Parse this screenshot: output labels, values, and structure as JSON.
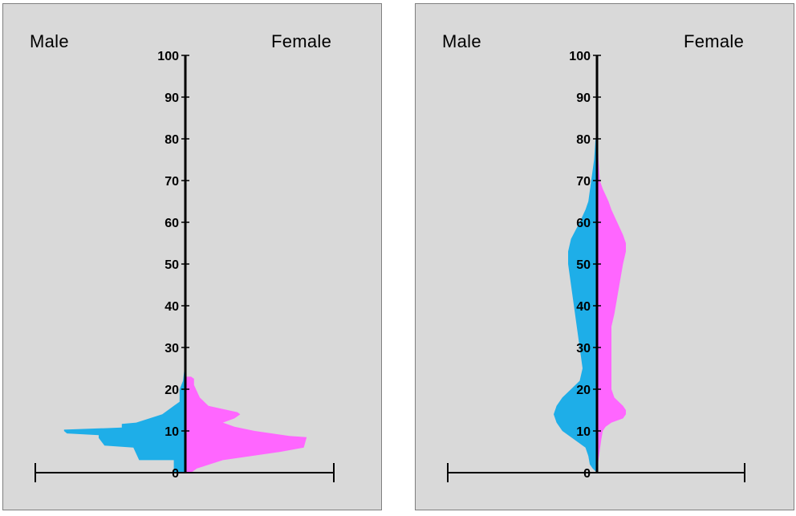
{
  "chart_data": [
    {
      "type": "area",
      "left_label": "Male",
      "right_label": "Female",
      "y_ticks": [
        "0",
        "10",
        "20",
        "30",
        "40",
        "50",
        "60",
        "70",
        "80",
        "90",
        "100"
      ],
      "ylim": [
        0,
        100
      ],
      "series": [
        {
          "name": "Male",
          "color": "#1eaee8",
          "points": [
            [
              0,
              4
            ],
            [
              3,
              4
            ],
            [
              3,
              16
            ],
            [
              6,
              18
            ],
            [
              6.5,
              28
            ],
            [
              8.3,
              30
            ],
            [
              9,
              30
            ],
            [
              9.4,
              41
            ],
            [
              10,
              42
            ],
            [
              10.3,
              42
            ],
            [
              10.8,
              22
            ],
            [
              11.7,
              22
            ],
            [
              12,
              17
            ],
            [
              14,
              8
            ],
            [
              16,
              4
            ],
            [
              17,
              2
            ],
            [
              20,
              2
            ],
            [
              22,
              0.8
            ],
            [
              25,
              0.3
            ],
            [
              27,
              0
            ]
          ]
        },
        {
          "name": "Female",
          "color": "#ff66ff",
          "points": [
            [
              0,
              2
            ],
            [
              1,
              4
            ],
            [
              3,
              13
            ],
            [
              5,
              33
            ],
            [
              6,
              41
            ],
            [
              8.5,
              42
            ],
            [
              8.8,
              36
            ],
            [
              10,
              24
            ],
            [
              11,
              17
            ],
            [
              12,
              13
            ],
            [
              13,
              17
            ],
            [
              14,
              19
            ],
            [
              14.5,
              18
            ],
            [
              16,
              8
            ],
            [
              18,
              5
            ],
            [
              21,
              3
            ],
            [
              22.5,
              3
            ],
            [
              23,
              2
            ]
          ]
        }
      ]
    },
    {
      "type": "area",
      "left_label": "Male",
      "right_label": "Female",
      "y_ticks": [
        "0",
        "10",
        "20",
        "30",
        "40",
        "50",
        "60",
        "70",
        "80",
        "90",
        "100"
      ],
      "ylim": [
        0,
        100
      ],
      "series": [
        {
          "name": "Male",
          "color": "#1eaee8",
          "points": [
            [
              0,
              0
            ],
            [
              1,
              1.5
            ],
            [
              2,
              2.5
            ],
            [
              4,
              3
            ],
            [
              6,
              4
            ],
            [
              8,
              8
            ],
            [
              10,
              12
            ],
            [
              12,
              14
            ],
            [
              14,
              15
            ],
            [
              16,
              14
            ],
            [
              18,
              12
            ],
            [
              20,
              9
            ],
            [
              22,
              6
            ],
            [
              25,
              5
            ],
            [
              30,
              6
            ],
            [
              35,
              7
            ],
            [
              40,
              8
            ],
            [
              45,
              9
            ],
            [
              50,
              10
            ],
            [
              53,
              10
            ],
            [
              56,
              9
            ],
            [
              60,
              6
            ],
            [
              63,
              4
            ],
            [
              65,
              3
            ],
            [
              70,
              2
            ],
            [
              75,
              1
            ],
            [
              80,
              0.5
            ]
          ]
        },
        {
          "name": "Female",
          "color": "#ff66ff",
          "points": [
            [
              0,
              0
            ],
            [
              3,
              0.5
            ],
            [
              8,
              1.5
            ],
            [
              10,
              2
            ],
            [
              11,
              3
            ],
            [
              12,
              5
            ],
            [
              13,
              9
            ],
            [
              14,
              10
            ],
            [
              15,
              10
            ],
            [
              16,
              9
            ],
            [
              18,
              6
            ],
            [
              20,
              5
            ],
            [
              25,
              5
            ],
            [
              30,
              5
            ],
            [
              35,
              5
            ],
            [
              38,
              6
            ],
            [
              42,
              7
            ],
            [
              46,
              8
            ],
            [
              50,
              9
            ],
            [
              53,
              10
            ],
            [
              55,
              10
            ],
            [
              57,
              9
            ],
            [
              60,
              7
            ],
            [
              63,
              5
            ],
            [
              65,
              4
            ],
            [
              68,
              2
            ],
            [
              70,
              1
            ],
            [
              75,
              0.5
            ],
            [
              82,
              0.2
            ]
          ]
        }
      ]
    }
  ]
}
